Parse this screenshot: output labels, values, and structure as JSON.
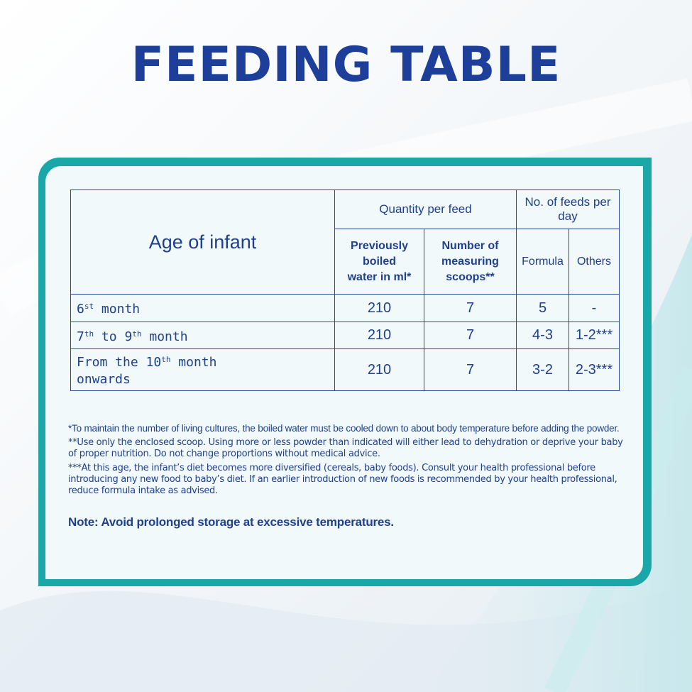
{
  "title": "FEEDING TABLE",
  "colors": {
    "title": "#1d3f9a",
    "frame": "#19a7a8",
    "text": "#1f3f8f",
    "border": "#2a4a96"
  },
  "table": {
    "age_header": "Age of infant",
    "quantity_header": "Quantity per feed",
    "feeds_header": "No. of feeds per day",
    "sub_headers": {
      "water_line1": "Previously boiled",
      "water_line2": "water in ml*",
      "scoops_line1": "Number of",
      "scoops_line2": "measuring scoops**",
      "formula": "Formula",
      "others": "Others"
    },
    "rows": [
      {
        "age_num": "6",
        "age_sup": "st",
        "age_rest": " month",
        "age_rest2": "",
        "water": "210",
        "scoops": "7",
        "formula": "5",
        "others": "-"
      },
      {
        "age_num": "7",
        "age_sup": "th",
        "age_mid": " to 9",
        "age_sup2": "th",
        "age_rest": " month",
        "water": "210",
        "scoops": "7",
        "formula": "4-3",
        "others": "1-2***"
      },
      {
        "age_num": "From the 10",
        "age_sup": "th",
        "age_rest": " month",
        "age_line2": "onwards",
        "water": "210",
        "scoops": "7",
        "formula": "3-2",
        "others": "2-3***"
      }
    ]
  },
  "notes": {
    "n1": "*To maintain the number of living cultures, the boiled water must be cooled down to about body temperature before adding the powder.",
    "n2": "**Use only the enclosed scoop. Using more or less powder than indicated will either lead to dehydration or deprive your baby of proper nutrition. Do not change proportions without medical advice.",
    "n3": "***At this age, the infant’s diet becomes more diversified (cereals, baby foods). Consult your health professional before introducing any new food to baby’s diet. If an earlier introduction of new foods is recommended by your health professional, reduce formula intake as advised.",
    "final": "Note: Avoid prolonged storage at excessive temperatures."
  }
}
